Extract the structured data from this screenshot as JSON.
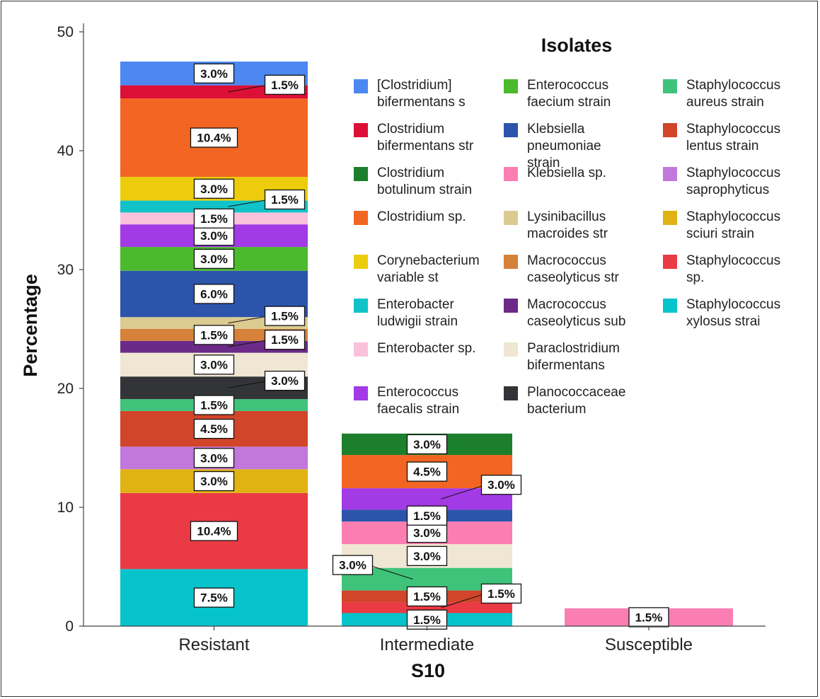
{
  "chart_data": {
    "type": "bar",
    "stacked": true,
    "categories": [
      "Resistant",
      "Intermediate",
      "Susceptible"
    ],
    "xlabel": "S10",
    "ylabel": "Percentage",
    "ylim": [
      0,
      50
    ],
    "yticks": [
      "0",
      "10",
      "20",
      "30",
      "40",
      "50"
    ],
    "grid": false,
    "legend_title": "Isolates",
    "legend_placement": "top-right",
    "series": [
      {
        "name": "[Clostridium] bifermentans s",
        "lines": [
          "[Clostridium]",
          "bifermentans s"
        ],
        "color": "#4d87f2"
      },
      {
        "name": "Clostridium bifermentans str",
        "lines": [
          "Clostridium",
          "bifermentans str"
        ],
        "color": "#dc0f36"
      },
      {
        "name": "Clostridium botulinum strain",
        "lines": [
          "Clostridium",
          "botulinum strain"
        ],
        "color": "#1b7f2c"
      },
      {
        "name": "Clostridium sp.",
        "lines": [
          "Clostridium sp."
        ],
        "color": "#f26522"
      },
      {
        "name": "Corynebacterium variable st",
        "lines": [
          "Corynebacterium",
          "variable st"
        ],
        "color": "#eccc0c"
      },
      {
        "name": "Enterobacter ludwigii strain",
        "lines": [
          "Enterobacter",
          "ludwigii strain"
        ],
        "color": "#11c3c9"
      },
      {
        "name": "Enterobacter sp.",
        "lines": [
          "Enterobacter sp."
        ],
        "color": "#f9c1dc"
      },
      {
        "name": "Enterococcus faecalis strain",
        "lines": [
          "Enterococcus",
          "faecalis strain"
        ],
        "color": "#a23ae6"
      },
      {
        "name": "Enterococcus faecium strain",
        "lines": [
          "Enterococcus",
          "faecium strain"
        ],
        "color": "#4cba2d"
      },
      {
        "name": "Klebsiella pneumoniae strain",
        "lines": [
          "Klebsiella",
          "pneumoniae",
          "strain"
        ],
        "color": "#2c54ab"
      },
      {
        "name": "Klebsiella sp.",
        "lines": [
          "Klebsiella sp."
        ],
        "color": "#fb7eb3"
      },
      {
        "name": "Lysinibacillus macroides str",
        "lines": [
          "Lysinibacillus",
          "macroides str"
        ],
        "color": "#dccb90"
      },
      {
        "name": "Macrococcus caseolyticus str",
        "lines": [
          "Macrococcus",
          "caseolyticus str"
        ],
        "color": "#d5813a"
      },
      {
        "name": "Macrococcus caseolyticus sub",
        "lines": [
          "Macrococcus",
          "caseolyticus sub"
        ],
        "color": "#6b2a88"
      },
      {
        "name": "Paraclostridium bifermentans",
        "lines": [
          "Paraclostridium",
          "bifermentans"
        ],
        "color": "#efe6d3"
      },
      {
        "name": "Planococcaceae bacterium",
        "lines": [
          "Planococcaceae",
          "bacterium"
        ],
        "color": "#333438"
      },
      {
        "name": "Staphylococcus aureus strain",
        "lines": [
          "Staphylococcus",
          "aureus strain"
        ],
        "color": "#3fc37a"
      },
      {
        "name": "Staphylococcus lentus strain",
        "lines": [
          "Staphylococcus",
          "lentus strain"
        ],
        "color": "#d1452a"
      },
      {
        "name": "Staphylococcus saprophyticus",
        "lines": [
          "Staphylococcus",
          "saprophyticus"
        ],
        "color": "#c177db"
      },
      {
        "name": "Staphylococcus sciuri strain",
        "lines": [
          "Staphylococcus",
          "sciuri strain"
        ],
        "color": "#e0b213"
      },
      {
        "name": "Staphylococcus sp.",
        "lines": [
          "Staphylococcus",
          "sp."
        ],
        "color": "#ea3a44"
      },
      {
        "name": "Staphylococcus xylosus strai",
        "lines": [
          "Staphylococcus",
          "xylosus strai"
        ],
        "color": "#07c4cb"
      }
    ],
    "stacks": [
      {
        "category": "Resistant",
        "segments": [
          {
            "series": "Staphylococcus xylosus strai",
            "value": 4.8,
            "label": "7.5%",
            "callout": false
          },
          {
            "series": "Staphylococcus sp.",
            "value": 6.4,
            "label": "10.4%",
            "callout": false
          },
          {
            "series": "Staphylococcus sciuri strain",
            "value": 2.0,
            "label": "3.0%",
            "callout": false
          },
          {
            "series": "Staphylococcus saprophyticus",
            "value": 1.9,
            "label": "3.0%",
            "callout": false
          },
          {
            "series": "Staphylococcus lentus strain",
            "value": 3.0,
            "label": "4.5%",
            "callout": false
          },
          {
            "series": "Staphylococcus aureus strain",
            "value": 1.0,
            "label": "1.5%",
            "callout": false
          },
          {
            "series": "Planococcaceae bacterium",
            "value": 1.9,
            "label": "3.0%",
            "callout": true
          },
          {
            "series": "Paraclostridium bifermentans",
            "value": 2.0,
            "label": "3.0%",
            "callout": false
          },
          {
            "series": "Macrococcus caseolyticus sub",
            "value": 1.0,
            "label": "1.5%",
            "callout": true
          },
          {
            "series": "Macrococcus caseolyticus str",
            "value": 1.0,
            "label": "1.5%",
            "callout": false
          },
          {
            "series": "Lysinibacillus macroides str",
            "value": 1.0,
            "label": "1.5%",
            "callout": true
          },
          {
            "series": "Klebsiella pneumoniae strain",
            "value": 3.9,
            "label": "6.0%",
            "callout": false
          },
          {
            "series": "Enterococcus faecium strain",
            "value": 2.0,
            "label": "3.0%",
            "callout": false
          },
          {
            "series": "Enterococcus faecalis strain",
            "value": 1.9,
            "label": "3.0%",
            "callout": false
          },
          {
            "series": "Enterobacter sp.",
            "value": 1.0,
            "label": "1.5%",
            "callout": false
          },
          {
            "series": "Enterobacter ludwigii strain",
            "value": 1.0,
            "label": "1.5%",
            "callout": true
          },
          {
            "series": "Corynebacterium variable st",
            "value": 2.0,
            "label": "3.0%",
            "callout": false
          },
          {
            "series": "Clostridium sp.",
            "value": 6.6,
            "label": "10.4%",
            "callout": false
          },
          {
            "series": "Clostridium bifermentans str",
            "value": 1.1,
            "label": "1.5%",
            "callout": true
          },
          {
            "series": "[Clostridium] bifermentans s",
            "value": 2.0,
            "label": "3.0%",
            "callout": false
          }
        ]
      },
      {
        "category": "Intermediate",
        "segments": [
          {
            "series": "Staphylococcus xylosus strai",
            "value": 1.1,
            "label": "1.5%",
            "callout": false
          },
          {
            "series": "Staphylococcus sp.",
            "value": 0.9,
            "label": "1.5%",
            "callout": true
          },
          {
            "series": "Staphylococcus lentus strain",
            "value": 1.0,
            "label": "1.5%",
            "callout": false
          },
          {
            "series": "Staphylococcus aureus strain",
            "value": 1.9,
            "label": "3.0%",
            "callout": true
          },
          {
            "series": "Paraclostridium bifermentans",
            "value": 2.0,
            "label": "3.0%",
            "callout": false
          },
          {
            "series": "Klebsiella sp.",
            "value": 1.9,
            "label": "3.0%",
            "callout": false
          },
          {
            "series": "Klebsiella pneumoniae strain",
            "value": 1.0,
            "label": "1.5%",
            "callout": false
          },
          {
            "series": "Enterococcus faecalis strain",
            "value": 1.8,
            "label": "3.0%",
            "callout": true
          },
          {
            "series": "Clostridium sp.",
            "value": 2.8,
            "label": "4.5%",
            "callout": false
          },
          {
            "series": "Clostridium botulinum strain",
            "value": 1.8,
            "label": "3.0%",
            "callout": false
          }
        ]
      },
      {
        "category": "Susceptible",
        "segments": [
          {
            "series": "Klebsiella sp.",
            "value": 1.5,
            "label": "1.5%",
            "callout": false
          }
        ]
      }
    ]
  }
}
